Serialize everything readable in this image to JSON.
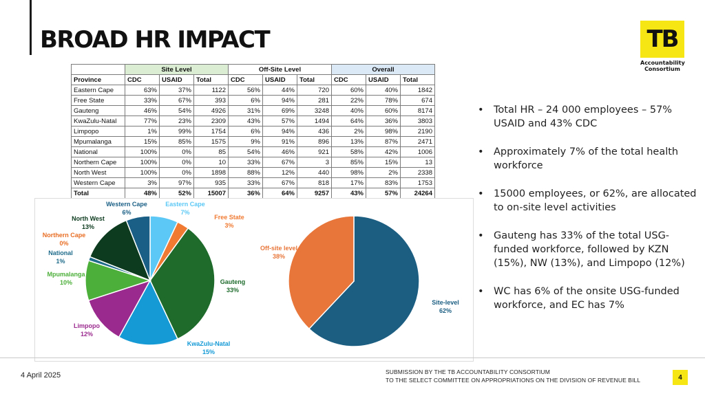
{
  "slide": {
    "title": "BROAD HR IMPACT",
    "date": "4 April 2025",
    "footer_line1": "SUBMISSION BY THE TB ACCOUNTABILITY CONSORTIUM",
    "footer_line2": "TO THE SELECT COMMITTEE ON APPROPRIATIONS ON THE DIVISION OF REVENUE BILL",
    "page_number": "4"
  },
  "logo": {
    "mark": "TB",
    "line1": "Accountability",
    "line2": "Consortium",
    "color": "#f5e614"
  },
  "table": {
    "groups": [
      "Site Level",
      "Off-Site Level",
      "Overall"
    ],
    "headers": [
      "Province",
      "CDC",
      "USAID",
      "Total",
      "CDC",
      "USAID",
      "Total",
      "CDC",
      "USAID",
      "Total"
    ],
    "rows": [
      [
        "Eastern Cape",
        "63%",
        "37%",
        "1122",
        "56%",
        "44%",
        "720",
        "60%",
        "40%",
        "1842"
      ],
      [
        "Free State",
        "33%",
        "67%",
        "393",
        "6%",
        "94%",
        "281",
        "22%",
        "78%",
        "674"
      ],
      [
        "Gauteng",
        "46%",
        "54%",
        "4926",
        "31%",
        "69%",
        "3248",
        "40%",
        "60%",
        "8174"
      ],
      [
        "KwaZulu-Natal",
        "77%",
        "23%",
        "2309",
        "43%",
        "57%",
        "1494",
        "64%",
        "36%",
        "3803"
      ],
      [
        "Limpopo",
        "1%",
        "99%",
        "1754",
        "6%",
        "94%",
        "436",
        "2%",
        "98%",
        "2190"
      ],
      [
        "Mpumalanga",
        "15%",
        "85%",
        "1575",
        "9%",
        "91%",
        "896",
        "13%",
        "87%",
        "2471"
      ],
      [
        "National",
        "100%",
        "0%",
        "85",
        "54%",
        "46%",
        "921",
        "58%",
        "42%",
        "1006"
      ],
      [
        "Northern Cape",
        "100%",
        "0%",
        "10",
        "33%",
        "67%",
        "3",
        "85%",
        "15%",
        "13"
      ],
      [
        "North West",
        "100%",
        "0%",
        "1898",
        "88%",
        "12%",
        "440",
        "98%",
        "2%",
        "2338"
      ],
      [
        "Western Cape",
        "3%",
        "97%",
        "935",
        "33%",
        "67%",
        "818",
        "17%",
        "83%",
        "1753"
      ]
    ],
    "total_row": [
      "Total",
      "48%",
      "52%",
      "15007",
      "36%",
      "64%",
      "9257",
      "43%",
      "57%",
      "24264"
    ],
    "colors": {
      "site_level": "#dbeed3",
      "overall": "#dbe9f7"
    }
  },
  "chart_data": [
    {
      "type": "pie",
      "categories": [
        "Eastern Cape",
        "Free State",
        "Gauteng",
        "KwaZulu-Natal",
        "Limpopo",
        "Mpumalanga",
        "National",
        "Northern Cape",
        "North West",
        "Western Cape"
      ],
      "values": [
        7,
        3,
        33,
        15,
        12,
        10,
        1,
        0,
        13,
        6
      ],
      "labels": [
        "7%",
        "3%",
        "33%",
        "15%",
        "12%",
        "10%",
        "1%",
        "0%",
        "13%",
        "6%"
      ],
      "colors": [
        "#5bc8f5",
        "#f07a32",
        "#1e6b2c",
        "#159ad6",
        "#9b2a8e",
        "#4caf3a",
        "#1e6b8a",
        "#e86d23",
        "#0d3b1f",
        "#1a5f85"
      ]
    },
    {
      "type": "pie",
      "categories": [
        "Site-level",
        "Off-site level"
      ],
      "values": [
        62,
        38
      ],
      "labels": [
        "62%",
        "38%"
      ],
      "colors": [
        "#1b5e82",
        "#e8763a"
      ]
    }
  ],
  "bullets": [
    "Total HR – 24 000 employees – 57% USAID and 43% CDC",
    "Approximately 7% of the total health workforce",
    "15000 employees, or 62%, are allocated to on-site level activities",
    "Gauteng has 33% of the total USG-funded workforce, followed by KZN (15%), NW (13%), and Limpopo (12%)",
    "WC has 6% of the onsite USG-funded workforce, and EC has 7%"
  ],
  "bullet_symbol": "•"
}
